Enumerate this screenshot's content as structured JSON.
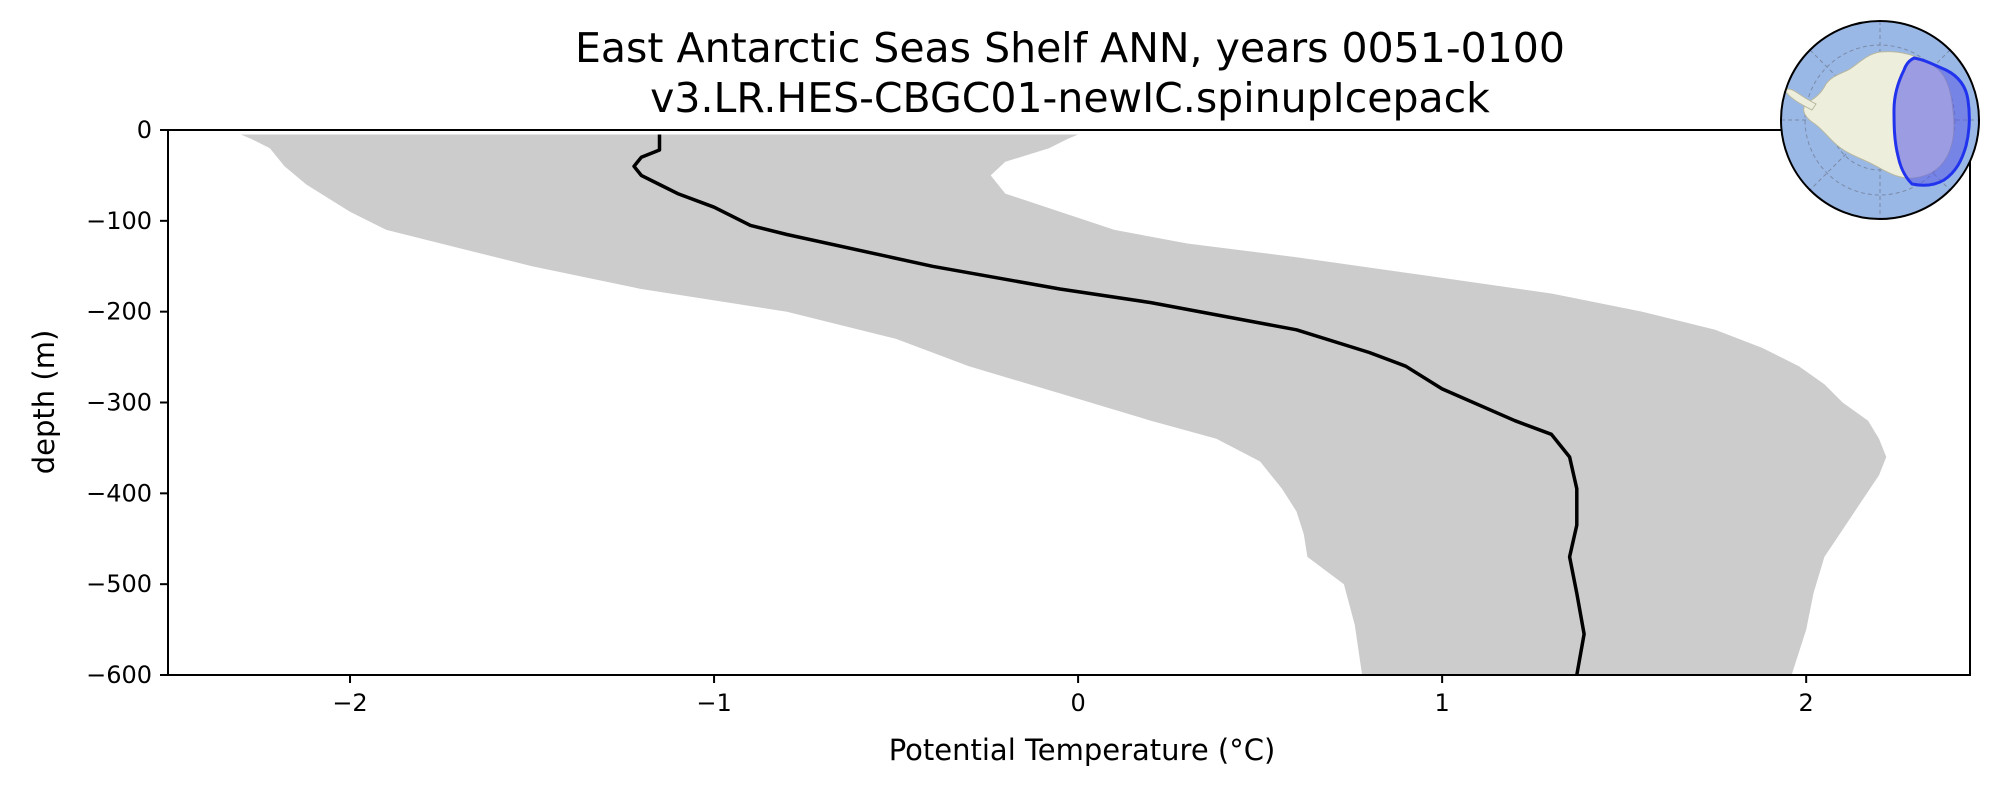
{
  "chart_data": {
    "type": "line",
    "title_lines": [
      "East Antarctic Seas Shelf ANN, years 0051-0100",
      "v3.LR.HES-CBGC01-newIC.spinupIcepack"
    ],
    "xlabel": "Potential Temperature (°C)",
    "ylabel": "depth (m)",
    "xlim": [
      -2.5,
      2.45
    ],
    "ylim": [
      -600,
      0
    ],
    "xticks": [
      -2,
      -1,
      0,
      1,
      2
    ],
    "xtick_labels": [
      "−2",
      "−1",
      "0",
      "1",
      "2"
    ],
    "yticks": [
      0,
      -100,
      -200,
      -300,
      -400,
      -500,
      -600
    ],
    "ytick_labels": [
      "0",
      "−100",
      "−200",
      "−300",
      "−400",
      "−500",
      "−600"
    ],
    "grid": false,
    "colors": {
      "mean_line": "#000000",
      "range_fill": "#cccccc",
      "inset_ocean": "#9ab8e6",
      "inset_land": "#eeeedd",
      "inset_region": "#5a5ae6",
      "inset_region_edge": "#2233ee"
    },
    "series": [
      {
        "name": "mean",
        "depth": [
          -5,
          -15,
          -22,
          -30,
          -40,
          -50,
          -60,
          -70,
          -85,
          -105,
          -115,
          -150,
          -175,
          -190,
          -220,
          -245,
          -260,
          -285,
          -320,
          -335,
          -350,
          -360,
          -395,
          -435,
          -470,
          -510,
          -555,
          -600
        ],
        "temperature": [
          -1.15,
          -1.15,
          -1.15,
          -1.2,
          -1.22,
          -1.2,
          -1.15,
          -1.1,
          -1.0,
          -0.9,
          -0.8,
          -0.4,
          -0.05,
          0.2,
          0.6,
          0.8,
          0.9,
          1.0,
          1.2,
          1.3,
          1.33,
          1.35,
          1.37,
          1.37,
          1.35,
          1.37,
          1.39,
          1.37
        ]
      },
      {
        "name": "range_min",
        "depth": [
          -5,
          -10,
          -20,
          -40,
          -60,
          -90,
          -110,
          -130,
          -150,
          -175,
          -200,
          -230,
          -260,
          -290,
          -320,
          -340,
          -365,
          -395,
          -420,
          -445,
          -470,
          -500,
          -545,
          -600
        ],
        "temperature": [
          -2.3,
          -2.27,
          -2.22,
          -2.18,
          -2.12,
          -2.0,
          -1.9,
          -1.7,
          -1.5,
          -1.2,
          -0.8,
          -0.5,
          -0.3,
          -0.05,
          0.2,
          0.38,
          0.5,
          0.56,
          0.6,
          0.62,
          0.63,
          0.73,
          0.76,
          0.78
        ]
      },
      {
        "name": "range_max",
        "depth": [
          -5,
          -10,
          -20,
          -35,
          -50,
          -60,
          -70,
          -90,
          -110,
          -125,
          -140,
          -160,
          -180,
          -200,
          -220,
          -240,
          -260,
          -280,
          -300,
          -320,
          -340,
          -360,
          -380,
          -410,
          -440,
          -470,
          -510,
          -550,
          -600
        ],
        "temperature": [
          0.0,
          -0.03,
          -0.08,
          -0.2,
          -0.24,
          -0.22,
          -0.2,
          -0.05,
          0.1,
          0.3,
          0.6,
          0.95,
          1.3,
          1.55,
          1.75,
          1.88,
          1.98,
          2.05,
          2.1,
          2.17,
          2.2,
          2.22,
          2.2,
          2.15,
          2.1,
          2.05,
          2.02,
          2.0,
          1.96
        ]
      }
    ],
    "inset_map": {
      "description_name": "east-antarctic-seas-shelf-locator",
      "region": "East Antarctic Seas Shelf"
    }
  }
}
